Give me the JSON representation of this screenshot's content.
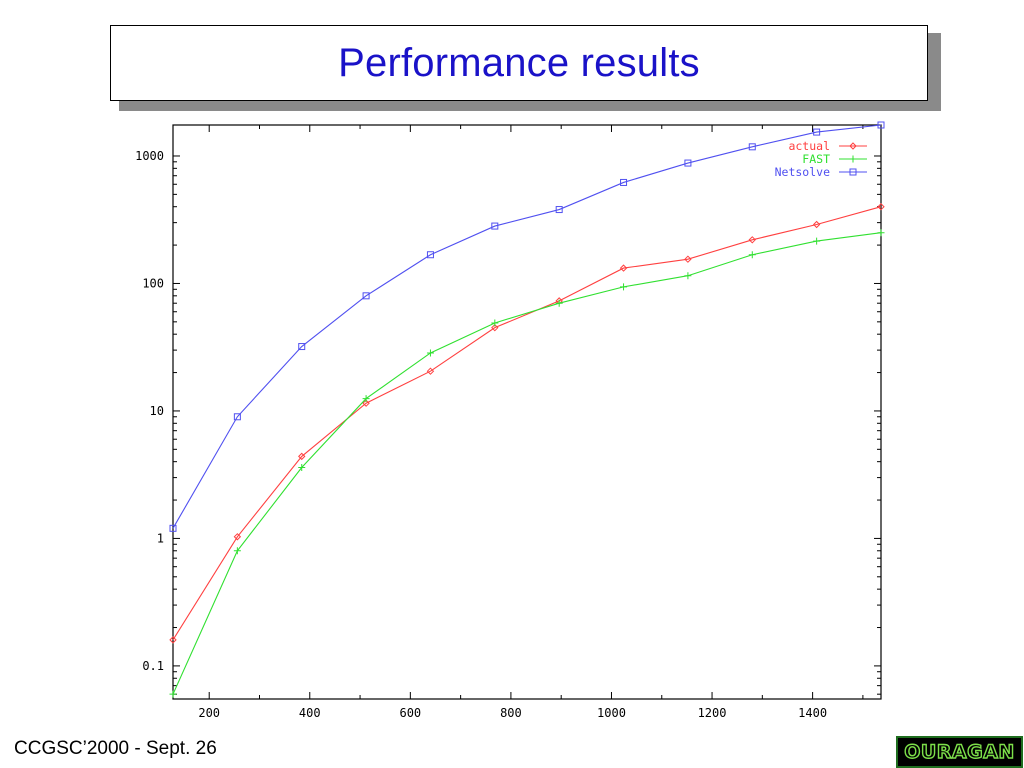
{
  "slide": {
    "title": "Performance results",
    "footer": "CCGSC’2000 - Sept. 26",
    "logo_text": "OURAGAN",
    "title_color": "#1a12c8"
  },
  "chart_data": {
    "type": "line",
    "title": "",
    "xlabel": "",
    "ylabel": "",
    "xlim": [
      128,
      1536
    ],
    "ylim": [
      0.055,
      1750
    ],
    "y_scale": "log",
    "x_ticks": [
      200,
      400,
      600,
      800,
      1000,
      1200,
      1400
    ],
    "y_ticks": [
      0.1,
      1,
      10,
      100,
      1000
    ],
    "y_tick_labels": [
      "0.1",
      "1",
      "10",
      "100",
      "1000"
    ],
    "grid": false,
    "legend_position": "top-right",
    "series": [
      {
        "name": "actual",
        "color": "#ff4040",
        "marker": "diamond",
        "x": [
          128,
          256,
          384,
          512,
          640,
          768,
          896,
          1024,
          1152,
          1280,
          1408,
          1536
        ],
        "y": [
          0.16,
          1.03,
          4.4,
          11.5,
          20.5,
          45,
          73,
          132,
          155,
          220,
          290,
          400
        ]
      },
      {
        "name": "FAST",
        "color": "#30e030",
        "marker": "plus",
        "x": [
          128,
          256,
          384,
          512,
          640,
          768,
          896,
          1024,
          1152,
          1280,
          1408,
          1536
        ],
        "y": [
          0.06,
          0.8,
          3.6,
          12.5,
          28.5,
          49,
          70,
          94,
          115,
          168,
          215,
          250
        ]
      },
      {
        "name": "Netsolve",
        "color": "#5050f0",
        "marker": "square",
        "x": [
          128,
          256,
          384,
          512,
          640,
          768,
          896,
          1024,
          1152,
          1280,
          1408,
          1536
        ],
        "y": [
          1.2,
          9,
          32,
          80,
          168,
          282,
          380,
          620,
          880,
          1180,
          1540,
          1750
        ]
      }
    ]
  }
}
